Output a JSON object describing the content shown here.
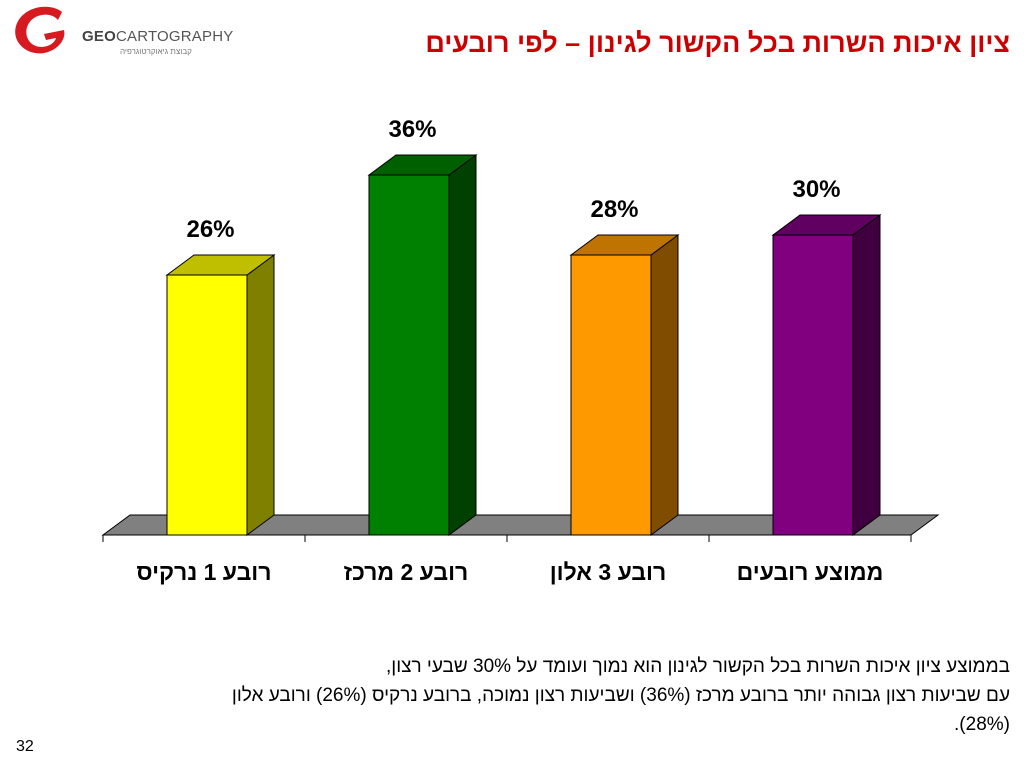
{
  "logo": {
    "brand_bold": "GEO",
    "brand_light": "CARTOGRAPHY",
    "tagline": "קבוצת גיאוקרטוגרפיה"
  },
  "title": "ציון איכות השרות בכל הקשור לגינון – לפי רובעים",
  "chart_data": {
    "type": "bar",
    "categories": [
      "רובע 1 נרקיס",
      "רובע 2 מרכז",
      "רובע 3 אלון",
      "ממוצע רובעים"
    ],
    "values": [
      26,
      36,
      28,
      30
    ],
    "value_labels": [
      "26%",
      "36%",
      "28%",
      "30%"
    ],
    "colors": [
      "#ffff00",
      "#008000",
      "#ff9900",
      "#800080"
    ],
    "ylim": [
      0,
      40
    ],
    "three_d": true,
    "grid": false,
    "legend": "none"
  },
  "summary": {
    "line1": "בממוצע ציון איכות השרות בכל הקשור לגינון הוא נמוך ועומד על 30% שבעי רצון,",
    "line2": "עם שביעות רצון גבוהה יותר ברובע מרכז (36%) ושביעות רצון נמוכה, ברובע נרקיס (26%) ורובע אלון",
    "line3": "(28%)."
  },
  "page_number": "32"
}
